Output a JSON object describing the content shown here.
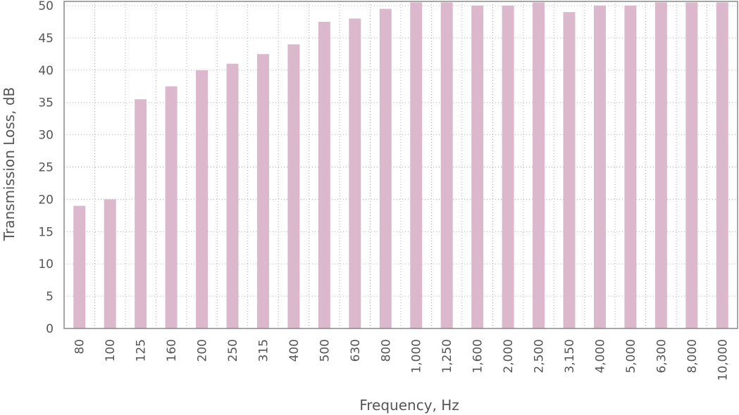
{
  "chart_data": {
    "type": "bar",
    "title": "",
    "xlabel": "Frequency, Hz",
    "ylabel": "Transmission Loss, dB",
    "categories": [
      "80",
      "100",
      "125",
      "160",
      "200",
      "250",
      "315",
      "400",
      "500",
      "630",
      "800",
      "1,000",
      "1,250",
      "1,600",
      "2,000",
      "2,500",
      "3,150",
      "4,000",
      "5,000",
      "6,300",
      "8,000",
      "10,000"
    ],
    "values": [
      19,
      20,
      35.5,
      37.5,
      40,
      41,
      42.5,
      44,
      47.5,
      48,
      49.5,
      50.5,
      50.5,
      50,
      50,
      50.5,
      49,
      50,
      50,
      50.5,
      50.5,
      50.5
    ],
    "ylim": [
      0,
      50
    ],
    "yticks": [
      "0",
      "5",
      "10",
      "15",
      "20",
      "25",
      "30",
      "35",
      "40",
      "45",
      "50"
    ],
    "grid": true,
    "legend": "none",
    "colors": {
      "bar": "#dcb8cd",
      "grid": "#b0b0b0",
      "axis": "#888888",
      "text": "#555555"
    }
  }
}
